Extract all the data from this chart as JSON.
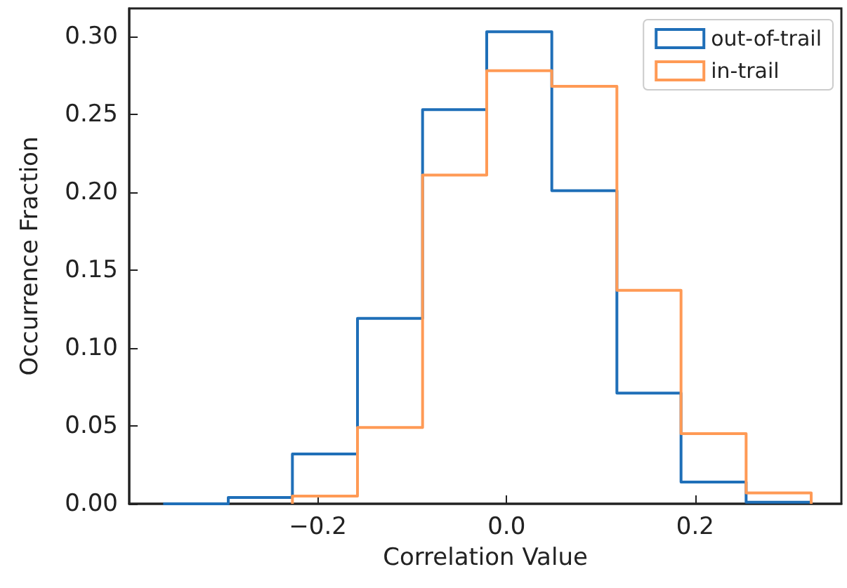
{
  "chart_data": {
    "type": "histogram",
    "xlabel": "Correlation Value",
    "ylabel": "Occurrence Fraction",
    "xlim": [
      -0.4,
      0.355
    ],
    "ylim": [
      0,
      0.318
    ],
    "xticks": [
      {
        "value": -0.2,
        "label": "−0.2"
      },
      {
        "value": 0,
        "label": "0.0"
      },
      {
        "value": 0.2,
        "label": "0.2"
      }
    ],
    "yticks": [
      {
        "value": 0,
        "label": "0.00"
      },
      {
        "value": 0.05,
        "label": "0.05"
      },
      {
        "value": 0.1,
        "label": "0.10"
      },
      {
        "value": 0.15,
        "label": "0.15"
      },
      {
        "value": 0.2,
        "label": "0.20"
      },
      {
        "value": 0.25,
        "label": "0.25"
      },
      {
        "value": 0.3,
        "label": "0.30"
      }
    ],
    "legend": "top right",
    "grid": false,
    "bins": [
      -0.364,
      -0.295,
      -0.227,
      -0.158,
      -0.089,
      -0.021,
      0.048,
      0.117,
      0.185,
      0.254,
      0.323
    ],
    "series": [
      {
        "name": "out-of-trail",
        "color": "#1f6fb8",
        "values": [
          0,
          0.004,
          0.032,
          0.119,
          0.253,
          0.303,
          0.201,
          0.071,
          0.014,
          0.001
        ]
      },
      {
        "name": "in-trail",
        "color": "#ff9a55",
        "bins": [
          -0.227,
          -0.158,
          -0.089,
          -0.021,
          0.048,
          0.117,
          0.185,
          0.254,
          0.323
        ],
        "values": [
          0.005,
          0.049,
          0.211,
          0.278,
          0.268,
          0.137,
          0.045,
          0.007
        ]
      }
    ]
  }
}
